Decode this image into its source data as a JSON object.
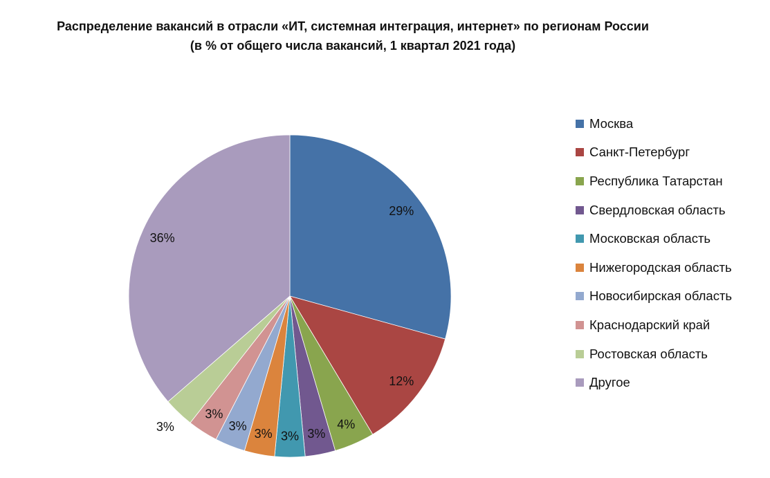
{
  "chart_data": {
    "type": "pie",
    "title": "Распределение вакансий в отрасли «ИТ, системная интеграция, интернет» по регионам России",
    "subtitle": "(в % от общего числа вакансий, 1 квартал 2021 года)",
    "categories": [
      "Москва",
      "Санкт-Петербург",
      "Республика Татарстан",
      "Свердловская область",
      "Московская область",
      "Нижегородская область",
      "Новосибирская область",
      "Краснодарский край",
      "Ростовская область",
      "Другое"
    ],
    "values": [
      29,
      12,
      4,
      3,
      3,
      3,
      3,
      3,
      3,
      36
    ],
    "labels": [
      "29%",
      "12%",
      "4%",
      "3%",
      "3%",
      "3%",
      "3%",
      "3%",
      "3%",
      "36%"
    ],
    "colors": [
      "#4572a7",
      "#aa4643",
      "#89a54e",
      "#71588f",
      "#4198af",
      "#db843d",
      "#93a9cf",
      "#d19392",
      "#b9cd96",
      "#a99bbd"
    ],
    "legend_position": "right"
  }
}
